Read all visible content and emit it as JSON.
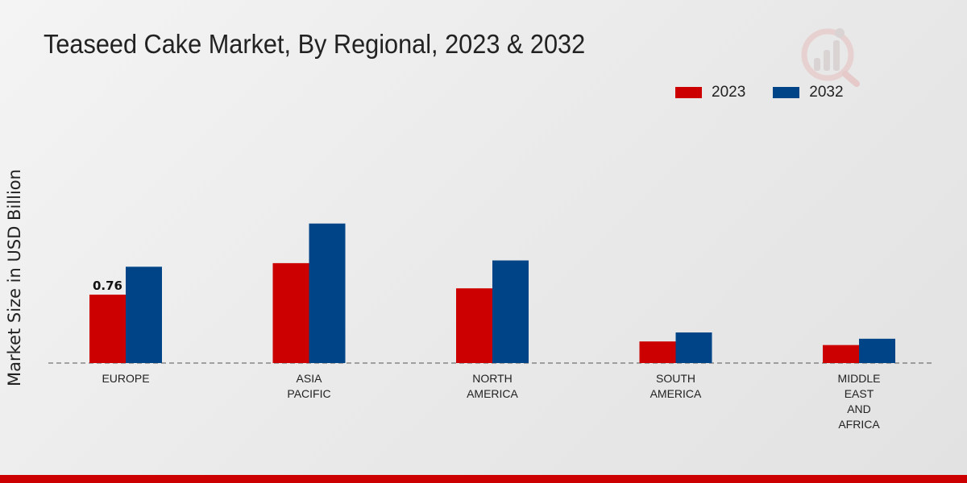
{
  "chart_data": {
    "type": "bar",
    "title": "Teaseed Cake Market, By Regional, 2023 & 2032",
    "xlabel": "",
    "ylabel": "Market Size in USD Billion",
    "categories": [
      "EUROPE",
      "ASIA\nPACIFIC",
      "NORTH\nAMERICA",
      "SOUTH\nAMERICA",
      "MIDDLE\nEAST\nAND\nAFRICA"
    ],
    "series": [
      {
        "name": "2023",
        "color": "#cc0000",
        "values": [
          0.76,
          1.11,
          0.83,
          0.24,
          0.2
        ]
      },
      {
        "name": "2032",
        "color": "#004488",
        "values": [
          1.07,
          1.55,
          1.14,
          0.34,
          0.27
        ]
      }
    ],
    "data_labels": [
      {
        "series": 0,
        "index": 0,
        "text": "0.76"
      }
    ],
    "ylim": [
      0,
      2.2
    ],
    "grid": false,
    "legend_position": "top-right"
  }
}
